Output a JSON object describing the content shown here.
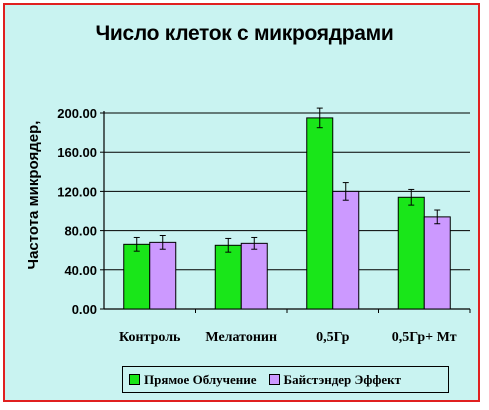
{
  "chart_data": {
    "type": "bar",
    "title": "Число клеток с микроядрами",
    "xlabel": "",
    "ylabel": "Частота микроядер,",
    "categories": [
      "Контроль",
      "Мелатонин",
      "0,5Гр",
      "0,5Гр+ Мт"
    ],
    "series": [
      {
        "name": "Прямое Облучение",
        "color": "#19e619",
        "values": [
          66,
          65,
          195,
          114
        ],
        "errors": [
          7,
          7,
          10,
          8
        ]
      },
      {
        "name": "Байстэндер Эффект",
        "color": "#cc99ff",
        "values": [
          68,
          67,
          120,
          94
        ],
        "errors": [
          7,
          6,
          9,
          7
        ]
      }
    ],
    "ylim": [
      0,
      200
    ],
    "yticks": [
      0,
      40,
      80,
      120,
      160,
      200
    ],
    "ytick_labels": [
      "0.00",
      "40.00",
      "80.00",
      "120.00",
      "160.00",
      "200.00"
    ],
    "grid": true,
    "legend_position": "bottom"
  },
  "colors": {
    "background": "#c9f3f1",
    "border": "#e02020",
    "grid": "#000000"
  }
}
